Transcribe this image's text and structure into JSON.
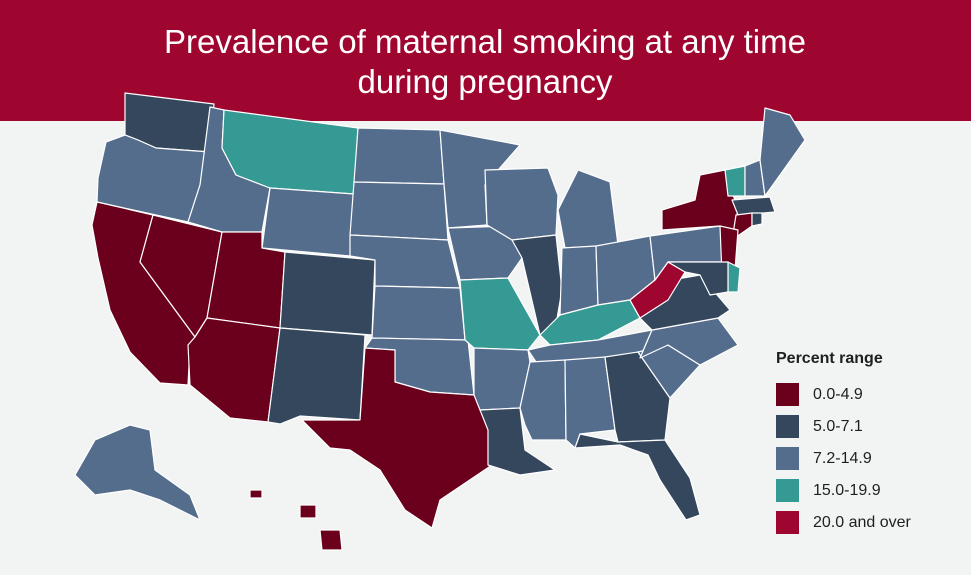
{
  "title": "Prevalence of maternal smoking at any time during pregnancy",
  "colors": {
    "banner": "#9e0630",
    "background": "#f2f3f3",
    "state_border": "#ffffff"
  },
  "legend": {
    "title": "Percent range",
    "items": [
      {
        "label": "0.0-4.9",
        "color": "#6b001c"
      },
      {
        "label": "5.0-7.1",
        "color": "#34475c"
      },
      {
        "label": "7.2-14.9",
        "color": "#556d8d"
      },
      {
        "label": "15.0-19.9",
        "color": "#359a93"
      },
      {
        "label": "20.0 and over",
        "color": "#9e0630"
      }
    ]
  },
  "states": {
    "WA": 1,
    "OR": 2,
    "CA": 0,
    "NV": 0,
    "ID": 2,
    "MT": 3,
    "WY": 2,
    "UT": 0,
    "AZ": 0,
    "CO": 1,
    "NM": 1,
    "ND": 2,
    "SD": 2,
    "NE": 2,
    "KS": 2,
    "OK": 2,
    "TX": 0,
    "MN": 2,
    "IA": 2,
    "MO": 3,
    "AR": 2,
    "LA": 1,
    "WI": 2,
    "IL": 1,
    "MI": 2,
    "IN": 2,
    "OH": 2,
    "KY": 3,
    "TN": 2,
    "MS": 2,
    "AL": 2,
    "GA": 1,
    "FL": 1,
    "SC": 2,
    "NC": 2,
    "VA": 1,
    "WV": 4,
    "PA": 2,
    "NY": 0,
    "VT": 3,
    "NH": 2,
    "ME": 2,
    "MA": 1,
    "CT": 0,
    "RI": 1,
    "NJ": 0,
    "DE": 3,
    "MD": 1,
    "AK": 2,
    "HI": 0
  }
}
